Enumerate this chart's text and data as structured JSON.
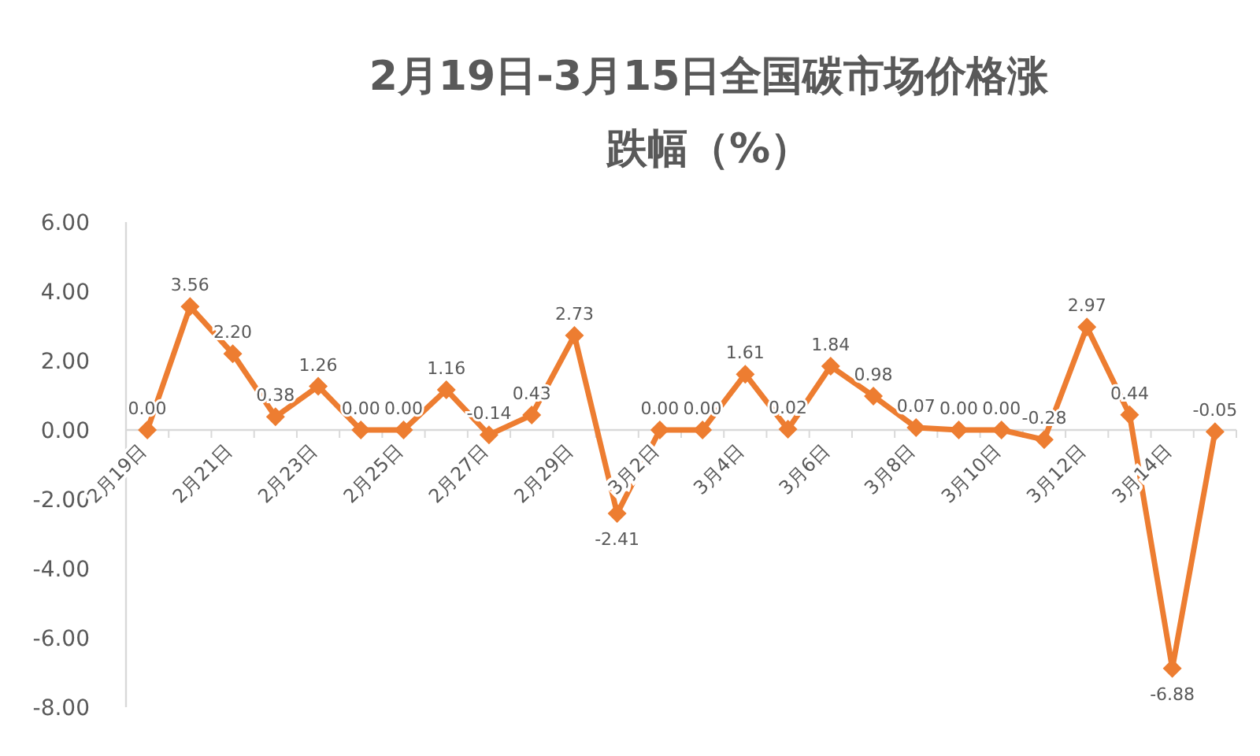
{
  "chart_data": {
    "type": "line",
    "title": "2月19日-3月15日全国碳市场价格涨跌幅（%）",
    "categories": [
      "2月19日",
      null,
      "2月21日",
      null,
      "2月23日",
      null,
      "2月25日",
      null,
      "2月27日",
      null,
      "2月29日",
      null,
      "3月2日",
      null,
      "3月4日",
      null,
      "3月6日",
      null,
      "3月8日",
      null,
      "3月10日",
      null,
      "3月12日",
      null,
      "3月14日",
      null
    ],
    "series": [
      {
        "color": "#ed7d31",
        "values": [
          0.0,
          3.56,
          2.2,
          0.38,
          1.26,
          0.0,
          0.0,
          1.16,
          -0.14,
          0.43,
          2.73,
          -2.41,
          0.0,
          0.0,
          1.61,
          0.02,
          1.84,
          0.98,
          0.07,
          0.0,
          0.0,
          -0.28,
          2.97,
          0.44,
          -6.88,
          -0.05
        ],
        "value_labels": [
          "0.00",
          "3.56",
          "2.20",
          "0.38",
          "1.26",
          "0.00",
          "0.00",
          "1.16",
          "-0.14",
          "0.43",
          "2.73",
          "-2.41",
          "0.00",
          "0.00",
          "1.61",
          "0.02",
          "1.84",
          "0.98",
          "0.07",
          "0.00",
          "0.00",
          "-0.28",
          "2.97",
          "0.44",
          "-6.88",
          "-0.05"
        ]
      }
    ],
    "ylim": [
      -8,
      6
    ],
    "yticks": [
      {
        "value": -8,
        "label": "-8.00"
      },
      {
        "value": -6,
        "label": "-6.00"
      },
      {
        "value": -4,
        "label": "-4.00"
      },
      {
        "value": -2,
        "label": "-2.00"
      },
      {
        "value": 0,
        "label": "0.00"
      },
      {
        "value": 2,
        "label": "2.00"
      },
      {
        "value": 4,
        "label": "4.00"
      },
      {
        "value": 6,
        "label": "6.00"
      }
    ],
    "marker": "diamond",
    "line_style": "solid"
  }
}
